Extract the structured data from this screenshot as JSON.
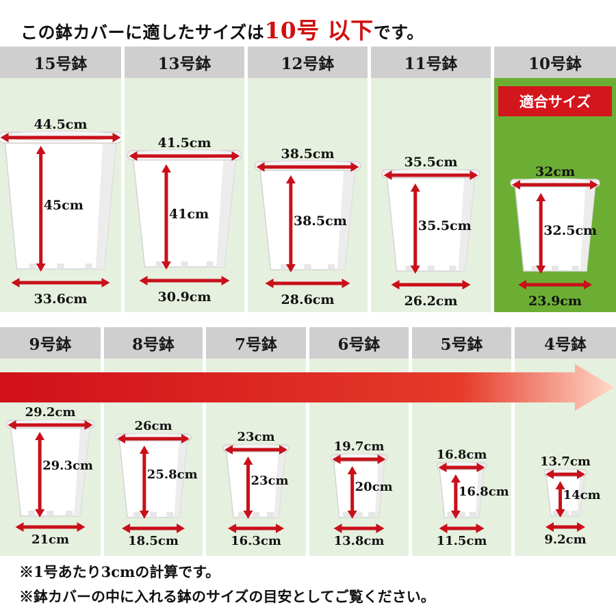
{
  "title": {
    "prefix": "この鉢カバーに適したサイズは",
    "highlight": "10号 以下",
    "suffix": "です。"
  },
  "badge": "適合サイズ",
  "top_row": [
    {
      "name": "15号鉢",
      "top": "44.5cm",
      "height": "45cm",
      "bottom": "33.6cm"
    },
    {
      "name": "13号鉢",
      "top": "41.5cm",
      "height": "41cm",
      "bottom": "30.9cm"
    },
    {
      "name": "12号鉢",
      "top": "38.5cm",
      "height": "38.5cm",
      "bottom": "28.6cm"
    },
    {
      "name": "11号鉢",
      "top": "35.5cm",
      "height": "35.5cm",
      "bottom": "26.2cm"
    },
    {
      "name": "10号鉢",
      "top": "32cm",
      "height": "32.5cm",
      "bottom": "23.9cm",
      "fit": true
    }
  ],
  "bottom_row": [
    {
      "name": "9号鉢",
      "top": "29.2cm",
      "height": "29.3cm",
      "bottom": "21cm"
    },
    {
      "name": "8号鉢",
      "top": "26cm",
      "height": "25.8cm",
      "bottom": "18.5cm"
    },
    {
      "name": "7号鉢",
      "top": "23cm",
      "height": "23cm",
      "bottom": "16.3cm"
    },
    {
      "name": "6号鉢",
      "top": "19.7cm",
      "height": "20cm",
      "bottom": "13.8cm"
    },
    {
      "name": "5号鉢",
      "top": "16.8cm",
      "height": "16.8cm",
      "bottom": "11.5cm"
    },
    {
      "name": "4号鉢",
      "top": "13.7cm",
      "height": "14cm",
      "bottom": "9.2cm"
    }
  ],
  "notes": [
    "※1号あたり3cmの計算です。",
    "※鉢カバーの中に入れる鉢のサイズの目安としてご覧ください。"
  ],
  "colors": {
    "accent": "#d10f0f",
    "fit_green": "#6cae34",
    "cell_bg": "#e6f0df",
    "header_gray": "#cfcfcf",
    "arrow_red": "#c8101a"
  }
}
